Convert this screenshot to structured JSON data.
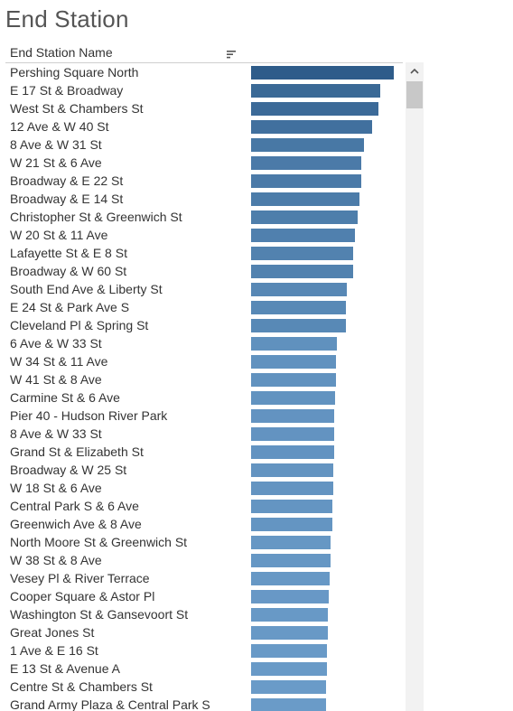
{
  "title": "End Station",
  "column_header": "End Station Name",
  "icons": {
    "sort": "sort-descending-icon",
    "scroll_up": "chevron-up-icon"
  },
  "colors": {
    "bar_dark": "#2e5c8a",
    "bar_light": "#6a9bc8"
  },
  "chart_data": {
    "type": "bar",
    "orientation": "horizontal",
    "categories": [
      "Pershing Square North",
      "E 17 St & Broadway",
      "West St & Chambers St",
      "12 Ave & W 40 St",
      "8 Ave & W 31 St",
      "W 21 St & 6 Ave",
      "Broadway & E 22 St",
      "Broadway & E 14 St",
      "Christopher St & Greenwich St",
      "W 20 St & 11 Ave",
      "Lafayette St & E 8 St",
      "Broadway & W 60 St",
      "South End Ave & Liberty St",
      "E 24 St & Park Ave S",
      "Cleveland Pl & Spring St",
      "6 Ave & W 33 St",
      "W 34 St & 11 Ave",
      "W 41 St & 8 Ave",
      "Carmine St & 6 Ave",
      "Pier 40 - Hudson River Park",
      "8 Ave & W 33 St",
      "Grand St & Elizabeth St",
      "Broadway & W 25 St",
      "W 18 St & 6 Ave",
      "Central Park S & 6 Ave",
      "Greenwich Ave & 8 Ave",
      "North Moore St & Greenwich St",
      "W 38 St & 8 Ave",
      "Vesey Pl & River Terrace",
      "Cooper Square & Astor Pl",
      "Washington St & Gansevoort St",
      "Great Jones St",
      "1 Ave & E 16 St",
      "E 13 St & Avenue A",
      "Centre St & Chambers St",
      "Grand Army Plaza & Central Park S"
    ],
    "values": [
      158,
      143,
      141,
      134,
      125,
      122,
      122,
      120,
      118,
      115,
      113,
      113,
      106,
      105,
      105,
      95,
      94,
      94,
      93,
      92,
      92,
      92,
      91,
      91,
      90,
      90,
      88,
      88,
      87,
      86,
      85,
      85,
      84,
      84,
      83,
      83
    ],
    "xlim": [
      0,
      158
    ],
    "title": "End Station",
    "xlabel": "",
    "ylabel": "End Station Name",
    "grid": false,
    "legend": "none"
  }
}
